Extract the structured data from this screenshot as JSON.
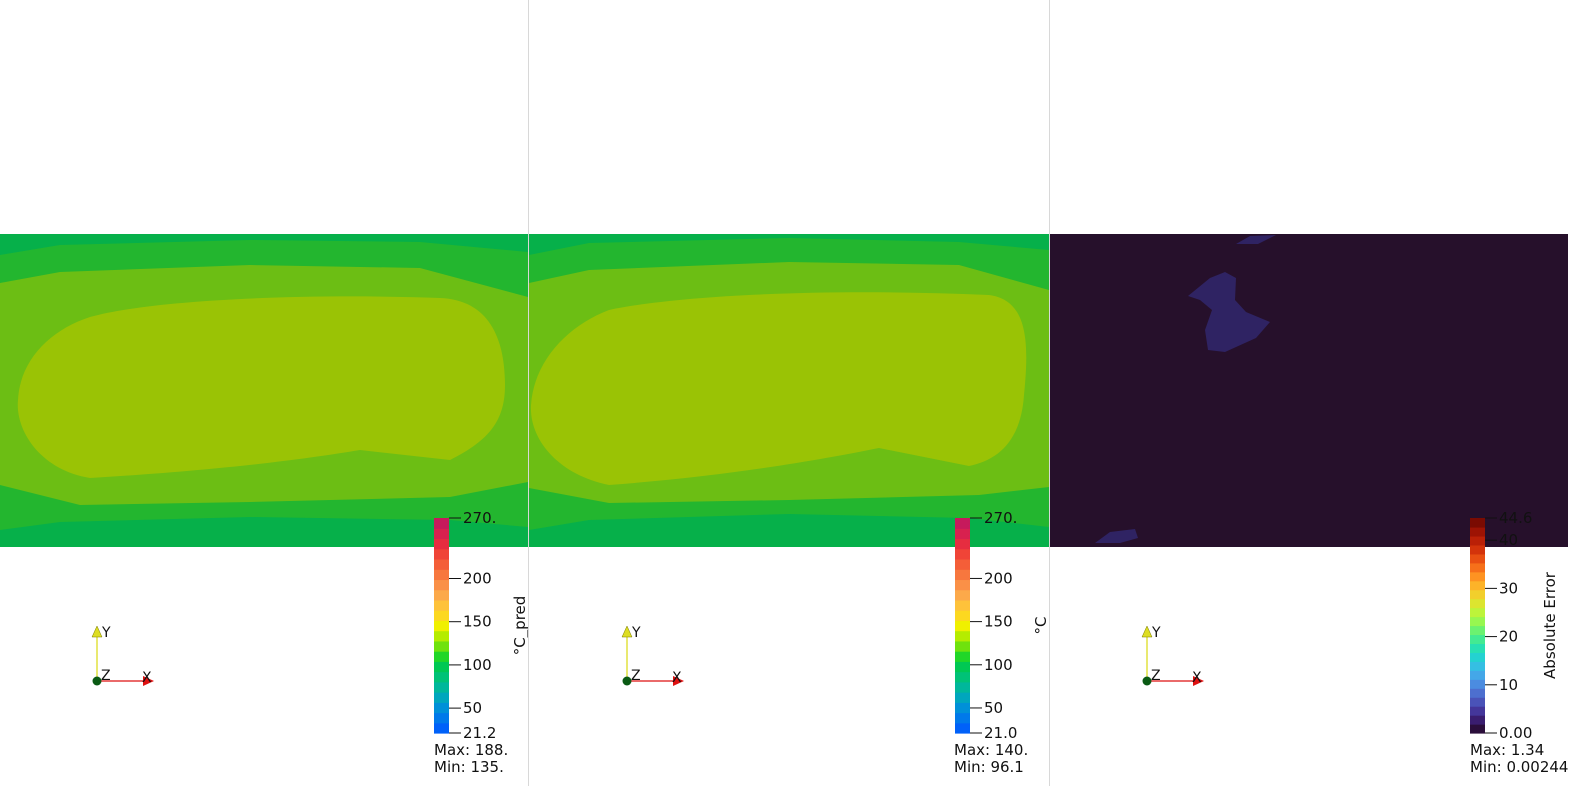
{
  "views": [
    {
      "id": "pred",
      "colorbar": {
        "title": "°C_pred",
        "min_label": "21.2",
        "max_label": "270.",
        "ticks": [
          "200",
          "150",
          "100",
          "50"
        ],
        "tick_values": [
          200,
          150,
          100,
          50
        ],
        "range_min": 21.2,
        "range_max": 270,
        "palette": "rainbow"
      },
      "stats": {
        "max": "Max: 188.",
        "min": "Min: 135."
      },
      "bands": [
        "#06b04a",
        "#23b62f",
        "#6cbe14",
        "#9ac305"
      ],
      "axes": {
        "x": "X",
        "y": "Y",
        "z": "Z"
      }
    },
    {
      "id": "truth",
      "colorbar": {
        "title": "°C",
        "min_label": "21.0",
        "max_label": "270.",
        "ticks": [
          "200",
          "150",
          "100",
          "50"
        ],
        "tick_values": [
          200,
          150,
          100,
          50
        ],
        "range_min": 21.0,
        "range_max": 270,
        "palette": "rainbow"
      },
      "stats": {
        "max": "Max: 140.",
        "min": "Min: 96.1"
      },
      "bands": [
        "#06b04a",
        "#23b62f",
        "#6cbe14",
        "#9ac305"
      ],
      "axes": {
        "x": "X",
        "y": "Y",
        "z": "Z"
      }
    },
    {
      "id": "error",
      "colorbar": {
        "title": "Absolute Error",
        "min_label": "0.00",
        "max_label": "44.6",
        "ticks": [
          "40",
          "30",
          "20",
          "10"
        ],
        "tick_values": [
          40,
          30,
          20,
          10
        ],
        "range_min": 0,
        "range_max": 44.6,
        "palette": "turbo"
      },
      "stats": {
        "max": "Max: 1.34",
        "min": "Min: 0.00244"
      },
      "bands": [
        "#26102b",
        "#2f2363"
      ],
      "axes": {
        "x": "X",
        "y": "Y",
        "z": "Z"
      }
    }
  ],
  "colors": {
    "axis_x": "#dd1111",
    "axis_y": "#dddd22",
    "axis_z_dot": "#0a5a14"
  }
}
